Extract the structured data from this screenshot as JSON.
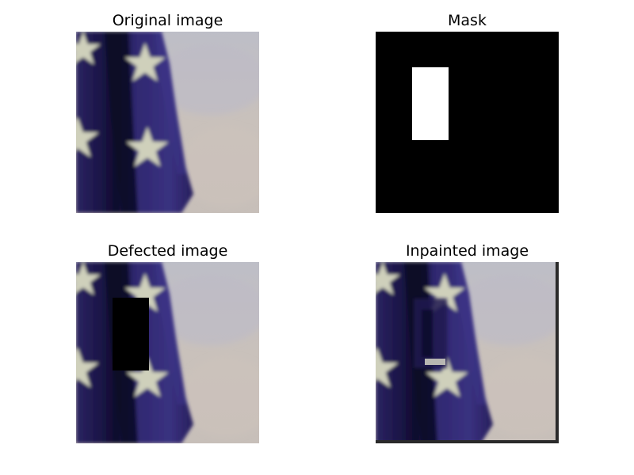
{
  "panels": {
    "original": {
      "title": "Original image"
    },
    "mask": {
      "title": "Mask"
    },
    "defected": {
      "title": "Defected image"
    },
    "inpainted": {
      "title": "Inpainted image"
    }
  },
  "colors": {
    "background": "#ffffff",
    "flag_blue": "#2a2260",
    "flag_blue_dark": "#140f38",
    "star": "#c9cbb6",
    "sky": "#c7c0bb",
    "mask_bg": "#000000",
    "mask_hole": "#ffffff"
  }
}
